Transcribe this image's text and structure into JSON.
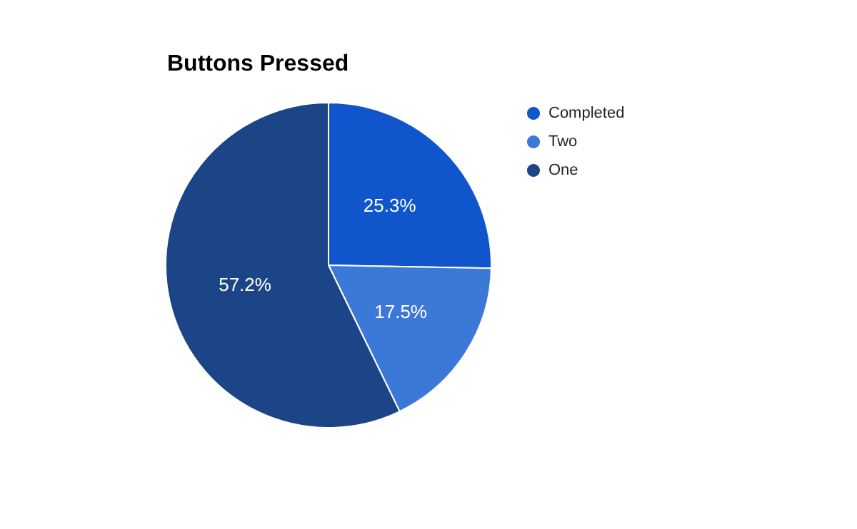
{
  "chart_data": {
    "type": "pie",
    "title": "Buttons Pressed",
    "categories": [
      "Completed",
      "Two",
      "One"
    ],
    "values": [
      25.3,
      17.5,
      57.2
    ],
    "colors": [
      "#1155cc",
      "#3c78d8",
      "#1c4587"
    ],
    "value_labels": [
      "25.3%",
      "17.5%",
      "57.2%"
    ],
    "legend": "right"
  }
}
